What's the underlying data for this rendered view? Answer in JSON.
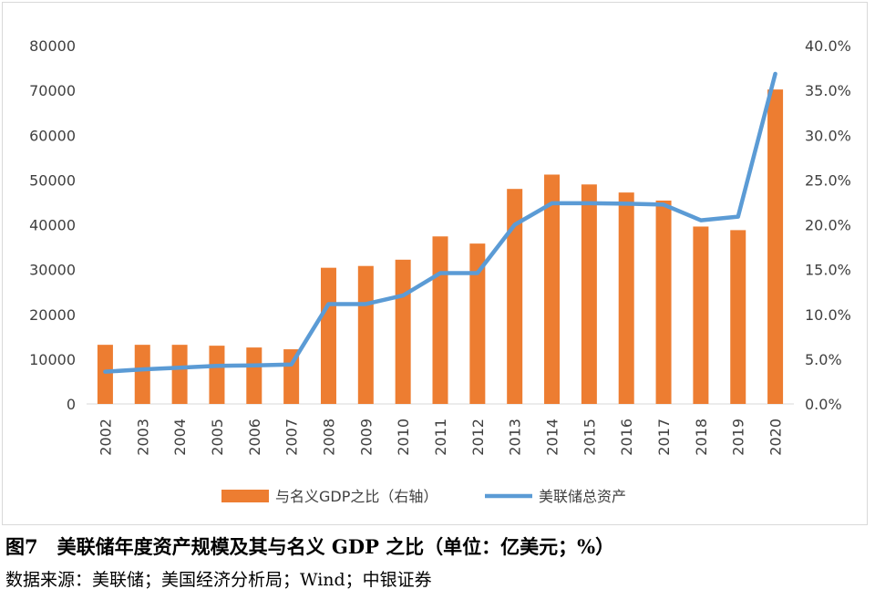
{
  "chart_data": {
    "type": "bar+line",
    "categories": [
      "2002",
      "2003",
      "2004",
      "2005",
      "2006",
      "2007",
      "2008",
      "2009",
      "2010",
      "2011",
      "2012",
      "2013",
      "2014",
      "2015",
      "2016",
      "2017",
      "2018",
      "2019",
      "2020"
    ],
    "series": [
      {
        "name": "与名义GDP之比（右轴）",
        "type": "bar",
        "axis": "right",
        "color": "#ED7D31",
        "values": [
          0.066,
          0.066,
          0.066,
          0.065,
          0.063,
          0.061,
          0.152,
          0.154,
          0.161,
          0.187,
          0.179,
          0.24,
          0.256,
          0.245,
          0.236,
          0.227,
          0.198,
          0.194,
          0.351
        ]
      },
      {
        "name": "美联储总资产",
        "type": "line",
        "axis": "left",
        "color": "#5B9BD5",
        "values": [
          7200,
          7700,
          8100,
          8500,
          8600,
          8800,
          22300,
          22300,
          24200,
          29200,
          29200,
          40000,
          44800,
          44800,
          44700,
          44500,
          41000,
          41800,
          73700
        ]
      }
    ],
    "y_left": {
      "min": 0,
      "max": 80000,
      "ticks": [
        "0",
        "10000",
        "20000",
        "30000",
        "40000",
        "50000",
        "60000",
        "70000",
        "80000"
      ]
    },
    "y_right": {
      "min": 0,
      "max": 0.4,
      "ticks": [
        "0.0%",
        "5.0%",
        "10.0%",
        "15.0%",
        "20.0%",
        "25.0%",
        "30.0%",
        "35.0%",
        "40.0%"
      ]
    },
    "legend_position": "bottom",
    "grid": false
  },
  "caption": "图7　美联储年度资产规模及其与名义 GDP 之比（单位：亿美元；%）",
  "source": "数据来源：美联储；美国经济分析局；Wind；中银证券"
}
